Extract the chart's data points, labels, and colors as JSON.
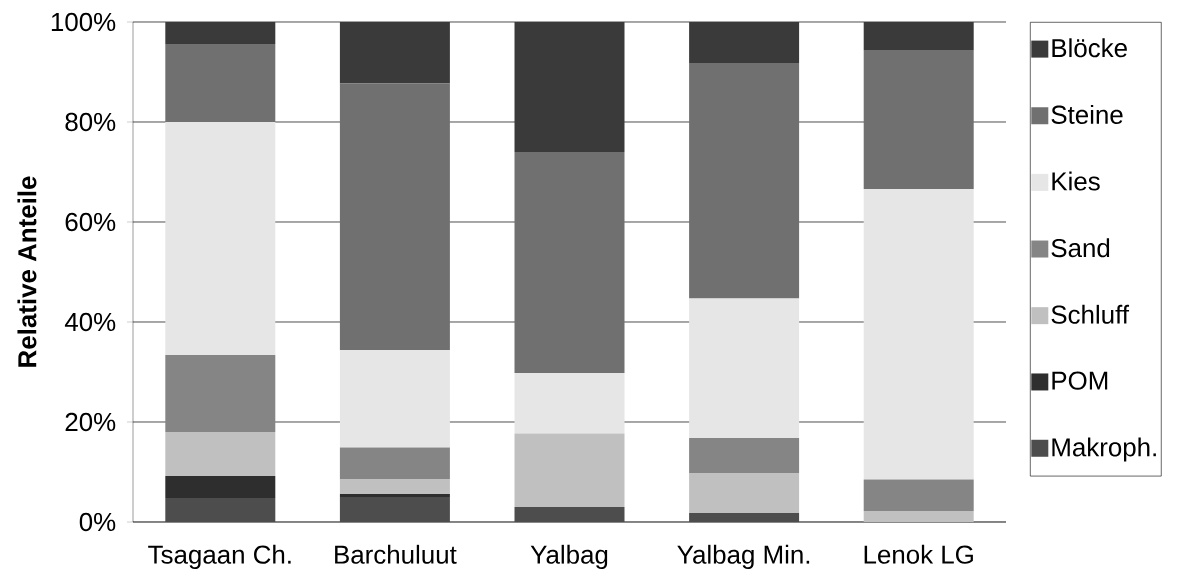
{
  "chart_data": {
    "type": "bar",
    "stacked": true,
    "ylabel": "Relative Anteile",
    "categories": [
      "Tsagaan Ch.",
      "Barchuluut",
      "Yalbag",
      "Yalbag Min.",
      "Lenok LG"
    ],
    "series": [
      {
        "name": "Makroph.",
        "color": "#4d4d4d",
        "values": [
          4.8,
          5.0,
          3.0,
          1.8,
          0
        ]
      },
      {
        "name": "POM",
        "color": "#2e2e2e",
        "values": [
          4.4,
          0.6,
          0,
          0,
          0
        ]
      },
      {
        "name": "Schluff",
        "color": "#c0c0c0",
        "values": [
          8.8,
          2.9,
          14.7,
          7.9,
          2.2
        ]
      },
      {
        "name": "Sand",
        "color": "#858585",
        "values": [
          15.4,
          6.4,
          0,
          7.1,
          6.3
        ]
      },
      {
        "name": "Kies",
        "color": "#e6e6e6",
        "values": [
          46.6,
          19.5,
          12.1,
          27.9,
          58.1
        ]
      },
      {
        "name": "Steine",
        "color": "#707070",
        "values": [
          15.6,
          53.3,
          44.2,
          47.1,
          27.8
        ]
      },
      {
        "name": "Blöcke",
        "color": "#3a3a3a",
        "values": [
          4.4,
          12.3,
          26.0,
          8.2,
          5.6
        ]
      }
    ],
    "ylim": [
      0,
      100
    ],
    "yticks": [
      {
        "value": 0,
        "label": "0%"
      },
      {
        "value": 20,
        "label": "20%"
      },
      {
        "value": 40,
        "label": "40%"
      },
      {
        "value": 60,
        "label": "60%"
      },
      {
        "value": 80,
        "label": "80%"
      },
      {
        "value": 100,
        "label": "100%"
      }
    ],
    "grid": "y",
    "legend": "right"
  }
}
